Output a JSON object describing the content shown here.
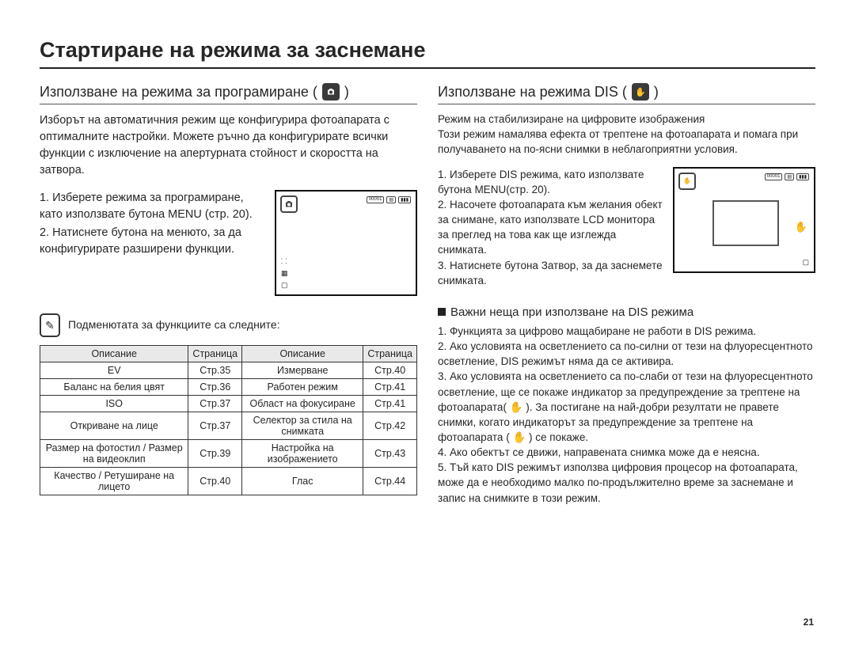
{
  "page": {
    "title": "Стартиране на режима за заснемане",
    "number": "21"
  },
  "left": {
    "heading": "Използване на режима за програмиране (",
    "heading_close": ")",
    "intro": "Изборът на автоматичния режим ще конфигурира фотоапарата с оптималните настройки. Можете ръчно да конфигурирате всички функции с изключение на апертурната стойност и скоростта на затвора.",
    "steps": [
      "1. Изберете режима за програмиране, като използвате бутона MENU (стр. 20).",
      "2. Натиснете бутона на менюто, за да конфигурирате разширени функции."
    ],
    "note": "Подменютата за функциите са следните:",
    "table": {
      "headers": [
        "Описание",
        "Страница",
        "Описание",
        "Страница"
      ],
      "rows": [
        [
          "EV",
          "Стр.35",
          "Измерване",
          "Стр.40"
        ],
        [
          "Баланс на белия цвят",
          "Стр.36",
          "Работен режим",
          "Стр.41"
        ],
        [
          "ISO",
          "Стр.37",
          "Област на фокусиране",
          "Стр.41"
        ],
        [
          "Откриване на лице",
          "Стр.37",
          "Селектор за стила на снимката",
          "Стр.42"
        ],
        [
          "Размер на фотостил / Размер на видеоклип",
          "Стр.39",
          "Настройка на изображението",
          "Стр.43"
        ],
        [
          "Качество / Ретуширане на лицето",
          "Стр.40",
          "Глас",
          "Стр.44"
        ]
      ]
    }
  },
  "right": {
    "heading": "Използване на режима DIS (",
    "heading_close": ")",
    "intro1": "Режим на стабилизиране на цифровите изображения",
    "intro2": "Този режим намалява ефекта от трептене на фотоапарата и помага при получаването на по-ясни снимки в неблагоприятни условия.",
    "steps": [
      "1. Изберете DIS режима, като използвате бутона MENU(стр. 20).",
      "2. Насочете фотоапарата към желания обект за снимане, като използвате LCD монитора за преглед на това как ще изглежда снимката.",
      "3. Натиснете бутона Затвор, за да заснемете снимката."
    ],
    "notes_heading": "Важни неща при използване на DIS режима",
    "notes": [
      "1. Функцията за цифрово мащабиране не работи в DIS режима.",
      "2. Ако условията на осветлението са по-силни от тези на флуоресцентното осветление, DIS режимът няма да се активира.",
      "3. Ако условията на осветлението са по-слаби от тези на флуоресцентното осветление, ще се покаже индикатор за предупреждение за трептене на фотоапарата( ✋ ). За постигане на най-добри резултати не правете снимки, когато индикаторът за предупреждение за трептене на фотоапарата ( ✋ ) се покаже.",
      "4. Ако обектът се движи, направената снимка може да е неясна.",
      "5. Тъй като DIS режимът използва цифровия процесор на фотоапарата, може да е необходимо малко по-продължително време за заснемане и запис на снимките в този режим."
    ]
  },
  "lcd": {
    "counter": "00001",
    "battery": "▮▮▮"
  }
}
